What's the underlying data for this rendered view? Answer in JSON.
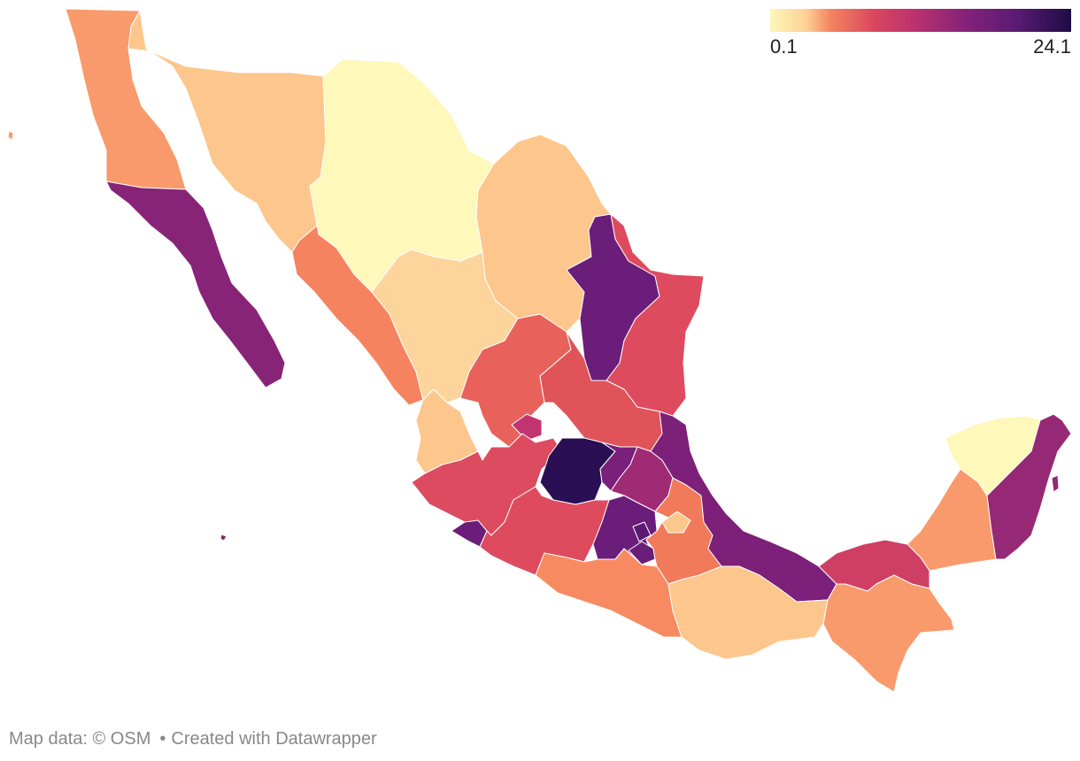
{
  "legend": {
    "min_label": "0.1",
    "max_label": "24.1",
    "colors": [
      "#fcf7b8",
      "#fdd195",
      "#f4845f",
      "#d9455f",
      "#b5306f",
      "#85227a",
      "#5a1a73",
      "#1e0c45"
    ]
  },
  "footer": {
    "map_data": "Map data: © OSM",
    "separator": "•",
    "credit": "Created with Datawrapper"
  },
  "regions": [
    {
      "id": "baja-california",
      "color": "#f99a6c"
    },
    {
      "id": "sonora",
      "color": "#fdc68c"
    },
    {
      "id": "chihuahua",
      "color": "#fef8bb"
    },
    {
      "id": "baja-california-sur",
      "color": "#872478"
    },
    {
      "id": "coahuila",
      "color": "#fdc68c"
    },
    {
      "id": "nuevo-leon",
      "color": "#6b1d7a"
    },
    {
      "id": "tamaulipas",
      "color": "#de4b5e"
    },
    {
      "id": "sinaloa",
      "color": "#f6835f"
    },
    {
      "id": "durango",
      "color": "#fdd49b"
    },
    {
      "id": "nayarit",
      "color": "#fdc68c"
    },
    {
      "id": "zacatecas",
      "color": "#e8625b"
    },
    {
      "id": "aguascalientes",
      "color": "#c0356f"
    },
    {
      "id": "san-luis-potosi",
      "color": "#e05459"
    },
    {
      "id": "jalisco",
      "color": "#dc4b5f"
    },
    {
      "id": "guanajuato",
      "color": "#2a0f55"
    },
    {
      "id": "queretaro",
      "color": "#7a1f7a"
    },
    {
      "id": "hidalgo",
      "color": "#a02b75"
    },
    {
      "id": "colima",
      "color": "#6b1d7a"
    },
    {
      "id": "michoacan",
      "color": "#de4b5e"
    },
    {
      "id": "estado-de-mexico",
      "color": "#6b1d7a"
    },
    {
      "id": "cdmx",
      "color": "#5a1a73"
    },
    {
      "id": "morelos",
      "color": "#6b1d7a"
    },
    {
      "id": "tlaxcala",
      "color": "#fdc68c"
    },
    {
      "id": "puebla",
      "color": "#f07a5a"
    },
    {
      "id": "veracruz",
      "color": "#7c2079"
    },
    {
      "id": "guerrero",
      "color": "#f78a60"
    },
    {
      "id": "oaxaca",
      "color": "#fdc68c"
    },
    {
      "id": "tabasco",
      "color": "#cf3f65"
    },
    {
      "id": "chiapas",
      "color": "#f99a6c"
    },
    {
      "id": "campeche",
      "color": "#f99a6c"
    },
    {
      "id": "yucatan",
      "color": "#fef8bb"
    },
    {
      "id": "quintana-roo",
      "color": "#962975"
    }
  ]
}
